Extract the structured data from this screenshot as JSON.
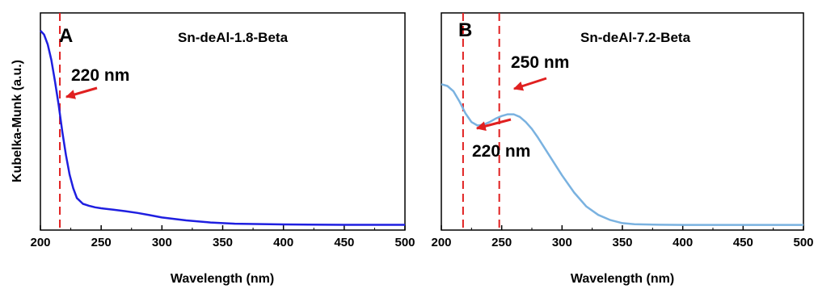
{
  "chart_data": [
    {
      "type": "line",
      "panel_label": "A",
      "title": "Sn-deAl-1.8-Beta",
      "xlabel": "Wavelength (nm)",
      "ylabel": "Kubelka-Munk (a.u.)",
      "xlim": [
        200,
        500
      ],
      "ylim": [
        0,
        1
      ],
      "x_ticks": [
        200,
        250,
        300,
        350,
        400,
        450,
        500
      ],
      "y_ticks_labeled": false,
      "grid": false,
      "line_color": "#1f1fe0",
      "x": [
        200,
        203,
        206,
        209,
        212,
        215,
        218,
        221,
        224,
        227,
        230,
        235,
        240,
        245,
        250,
        260,
        270,
        280,
        290,
        300,
        320,
        340,
        360,
        400,
        450,
        500
      ],
      "y": [
        1.0,
        0.98,
        0.93,
        0.85,
        0.74,
        0.62,
        0.48,
        0.36,
        0.26,
        0.19,
        0.14,
        0.11,
        0.1,
        0.092,
        0.087,
        0.08,
        0.072,
        0.063,
        0.052,
        0.04,
        0.025,
        0.014,
        0.008,
        0.004,
        0.002,
        0.002
      ],
      "reference_lines": [
        {
          "x": 216,
          "color": "#e02020",
          "style": "dashed"
        }
      ],
      "annotations": [
        {
          "text": "220 nm",
          "color": "#e02020"
        }
      ]
    },
    {
      "type": "line",
      "panel_label": "B",
      "title": "Sn-deAl-7.2-Beta",
      "xlabel": "Wavelength (nm)",
      "ylabel": "",
      "xlim": [
        200,
        500
      ],
      "ylim": [
        0,
        1
      ],
      "x_ticks": [
        200,
        250,
        300,
        350,
        400,
        450,
        500
      ],
      "y_ticks_labeled": false,
      "grid": false,
      "line_color": "#7ab2e0",
      "x": [
        200,
        205,
        210,
        215,
        220,
        225,
        230,
        235,
        240,
        245,
        250,
        255,
        260,
        265,
        270,
        275,
        280,
        290,
        300,
        310,
        320,
        330,
        340,
        350,
        360,
        380,
        400,
        450,
        500
      ],
      "y": [
        0.82,
        0.81,
        0.78,
        0.72,
        0.65,
        0.6,
        0.58,
        0.585,
        0.6,
        0.62,
        0.635,
        0.645,
        0.645,
        0.63,
        0.6,
        0.56,
        0.51,
        0.4,
        0.29,
        0.19,
        0.11,
        0.06,
        0.03,
        0.012,
        0.006,
        0.003,
        0.002,
        0.002,
        0.002
      ],
      "reference_lines": [
        {
          "x": 218,
          "color": "#e02020",
          "style": "dashed"
        },
        {
          "x": 248,
          "color": "#e02020",
          "style": "dashed"
        }
      ],
      "annotations": [
        {
          "text": "250 nm",
          "color": "#e02020"
        },
        {
          "text": "220 nm",
          "color": "#e02020"
        }
      ]
    }
  ]
}
